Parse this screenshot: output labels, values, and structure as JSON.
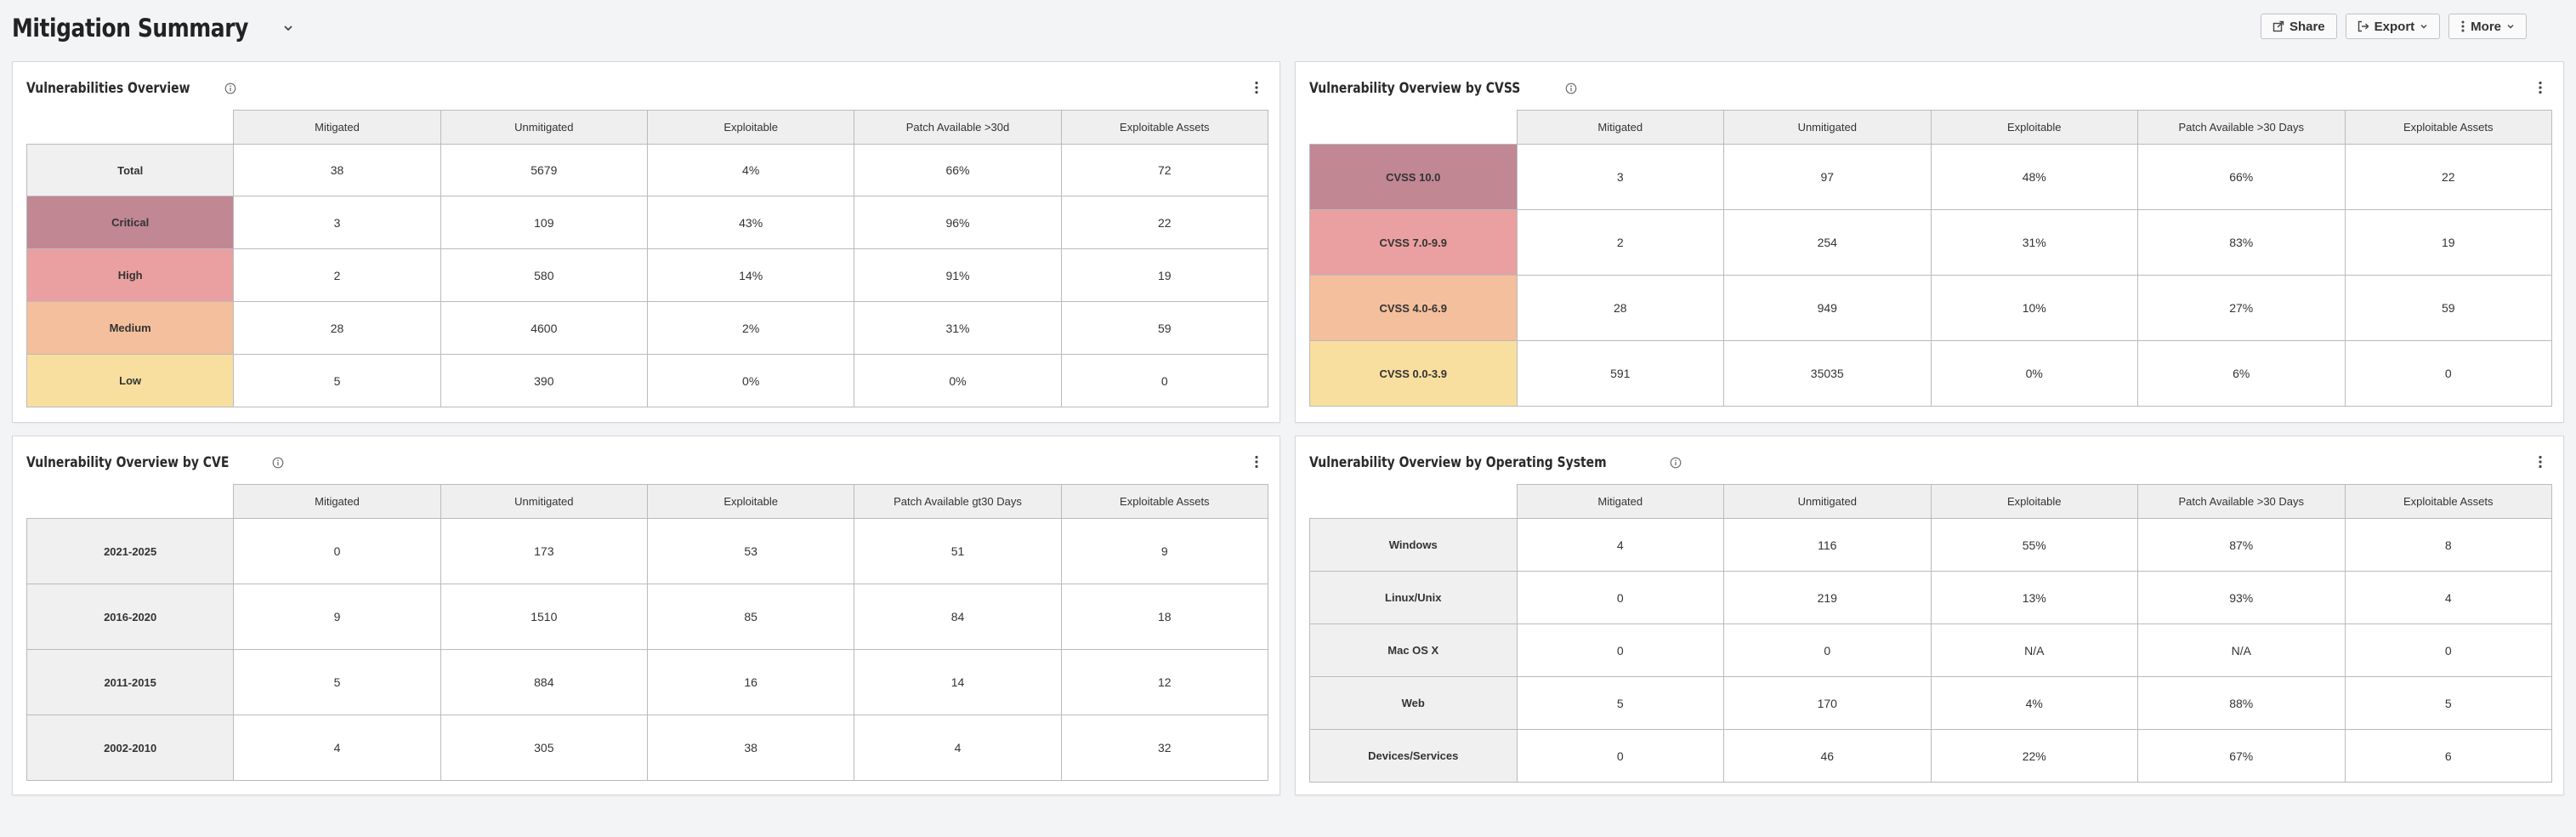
{
  "header": {
    "title": "Mitigation Summary",
    "actions": [
      {
        "label": "Share",
        "icon": "share-icon"
      },
      {
        "label": "Export",
        "icon": "export-icon"
      },
      {
        "label": "More",
        "icon": "more-vertical-icon"
      }
    ]
  },
  "colors": {
    "critical": "#c18793",
    "high": "#eaa0a0",
    "medium": "#f4bf9c",
    "low": "#f9df9f"
  },
  "panels": [
    {
      "title": "Vulnerabilities Overview",
      "columns": [
        "Mitigated",
        "Unmitigated",
        "Exploitable",
        "Patch Available >30d",
        "Exploitable Assets"
      ],
      "rows": [
        {
          "label": "Total",
          "values": [
            "38",
            "5679",
            "4%",
            "66%",
            "72"
          ]
        },
        {
          "label": "Critical",
          "values": [
            "3",
            "109",
            "43%",
            "96%",
            "22"
          ]
        },
        {
          "label": "High",
          "values": [
            "2",
            "580",
            "14%",
            "91%",
            "19"
          ]
        },
        {
          "label": "Medium",
          "values": [
            "28",
            "4600",
            "2%",
            "31%",
            "59"
          ]
        },
        {
          "label": "Low",
          "values": [
            "5",
            "390",
            "0%",
            "0%",
            "0"
          ]
        }
      ]
    },
    {
      "title": "Vulnerability Overview by CVSS",
      "columns": [
        "Mitigated",
        "Unmitigated",
        "Exploitable",
        "Patch Available >30 Days",
        "Exploitable Assets"
      ],
      "rows": [
        {
          "label": "CVSS 10.0",
          "values": [
            "3",
            "97",
            "48%",
            "66%",
            "22"
          ]
        },
        {
          "label": "CVSS 7.0-9.9",
          "values": [
            "2",
            "254",
            "31%",
            "83%",
            "19"
          ]
        },
        {
          "label": "CVSS 4.0-6.9",
          "values": [
            "28",
            "949",
            "10%",
            "27%",
            "59"
          ]
        },
        {
          "label": "CVSS 0.0-3.9",
          "values": [
            "591",
            "35035",
            "0%",
            "6%",
            "0"
          ]
        }
      ]
    },
    {
      "title": "Vulnerability Overview by CVE",
      "columns": [
        "Mitigated",
        "Unmitigated",
        "Exploitable",
        "Patch Available gt30 Days",
        "Exploitable Assets"
      ],
      "rows": [
        {
          "label": "2021-2025",
          "values": [
            "0",
            "173",
            "53",
            "51",
            "9"
          ]
        },
        {
          "label": "2016-2020",
          "values": [
            "9",
            "1510",
            "85",
            "84",
            "18"
          ]
        },
        {
          "label": "2011-2015",
          "values": [
            "5",
            "884",
            "16",
            "14",
            "12"
          ]
        },
        {
          "label": "2002-2010",
          "values": [
            "4",
            "305",
            "38",
            "4",
            "32"
          ]
        }
      ]
    },
    {
      "title": "Vulnerability Overview by Operating System",
      "columns": [
        "Mitigated",
        "Unmitigated",
        "Exploitable",
        "Patch Available >30 Days",
        "Exploitable Assets"
      ],
      "rows": [
        {
          "label": "Windows",
          "values": [
            "4",
            "116",
            "55%",
            "87%",
            "8"
          ]
        },
        {
          "label": "Linux/Unix",
          "values": [
            "0",
            "219",
            "13%",
            "93%",
            "4"
          ]
        },
        {
          "label": "Mac OS X",
          "values": [
            "0",
            "0",
            "N/A",
            "N/A",
            "0"
          ]
        },
        {
          "label": "Web",
          "values": [
            "5",
            "170",
            "4%",
            "88%",
            "5"
          ]
        },
        {
          "label": "Devices/Services",
          "values": [
            "0",
            "46",
            "22%",
            "67%",
            "6"
          ]
        }
      ]
    }
  ]
}
